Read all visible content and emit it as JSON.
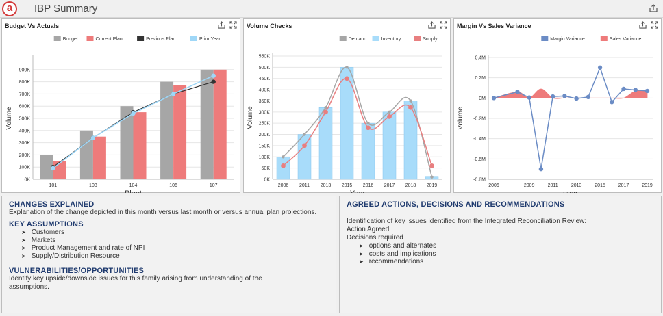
{
  "app": {
    "logo_letter": "a",
    "title": "IBP Summary"
  },
  "icons": {
    "export": "export-icon",
    "expand": "expand-icon"
  },
  "colors": {
    "budget": "#a6a6a6",
    "current_plan": "#ee7b7b",
    "previous_plan": "#333333",
    "prior_year": "#9fd7f7",
    "demand": "#a6a6a6",
    "inventory": "#a8dcfa",
    "supply": "#e87f80",
    "margin": "#6b8cc5",
    "sales_var": "#ee7b7b",
    "heading": "#1f3a6e"
  },
  "panels": {
    "budget": {
      "title": "Budget Vs Actuals"
    },
    "volume": {
      "title": "Volume Checks"
    },
    "margin": {
      "title": "Margin Vs Sales Variance"
    }
  },
  "chart_data": [
    {
      "type": "bar",
      "title": "Budget Vs Actuals",
      "xlabel": "Plant",
      "ylabel": "Volume",
      "categories": [
        "101",
        "103",
        "104",
        "106",
        "107"
      ],
      "ylim": [
        0,
        1000000
      ],
      "yticks": [
        "0K",
        "100K",
        "200K",
        "300K",
        "400K",
        "500K",
        "600K",
        "700K",
        "800K",
        "900K"
      ],
      "legend_position": "top-right",
      "series": [
        {
          "name": "Budget",
          "kind": "bar",
          "values": [
            200000,
            400000,
            600000,
            800000,
            900000
          ]
        },
        {
          "name": "Current Plan",
          "kind": "bar",
          "values": [
            150000,
            350000,
            550000,
            770000,
            900000
          ]
        },
        {
          "name": "Previous Plan",
          "kind": "line",
          "values": [
            100000,
            340000,
            550000,
            700000,
            800000
          ]
        },
        {
          "name": "Prior Year",
          "kind": "line",
          "values": [
            90000,
            340000,
            540000,
            700000,
            850000
          ]
        }
      ]
    },
    {
      "type": "bar",
      "title": "Volume Checks",
      "xlabel": "Year",
      "ylabel": "Volume",
      "categories": [
        "2006",
        "2011",
        "2013",
        "2015",
        "2016",
        "2017",
        "2018",
        "2019"
      ],
      "ylim": [
        0,
        550000
      ],
      "yticks": [
        "0K",
        "50K",
        "100K",
        "150K",
        "200K",
        "250K",
        "300K",
        "350K",
        "400K",
        "450K",
        "500K",
        "550K"
      ],
      "legend_position": "top-right",
      "series": [
        {
          "name": "Demand",
          "kind": "line",
          "values": [
            100000,
            200000,
            320000,
            500000,
            250000,
            300000,
            350000,
            10000
          ]
        },
        {
          "name": "Inventory",
          "kind": "bar",
          "values": [
            100000,
            200000,
            320000,
            500000,
            250000,
            300000,
            350000,
            10000
          ]
        },
        {
          "name": "Supply",
          "kind": "line",
          "values": [
            60000,
            150000,
            300000,
            450000,
            230000,
            280000,
            320000,
            60000
          ]
        }
      ]
    },
    {
      "type": "area",
      "title": "Margin Vs Sales Variance",
      "xlabel": "year",
      "ylabel": "Volume",
      "x": [
        2006,
        2008,
        2009,
        2010,
        2011,
        2012,
        2013,
        2014,
        2015,
        2016,
        2017,
        2018,
        2019
      ],
      "xticks": [
        "2006",
        "2009",
        "2011",
        "2013",
        "2015",
        "2017",
        "2019"
      ],
      "ylim": [
        -800000,
        400000
      ],
      "yticks": [
        "-0.8M",
        "-0.6M",
        "-0.4M",
        "-0.2M",
        "0M",
        "0.2M",
        "0.4M"
      ],
      "legend_position": "top-right",
      "series": [
        {
          "name": "Margin Variance",
          "kind": "line",
          "values": [
            0,
            60000,
            5000,
            -700000,
            15000,
            20000,
            -5000,
            10000,
            300000,
            -40000,
            90000,
            80000,
            70000
          ]
        },
        {
          "name": "Sales Variance",
          "kind": "area",
          "values": [
            0,
            60000,
            0,
            90000,
            0,
            0,
            0,
            0,
            0,
            0,
            0,
            70000,
            70000
          ]
        }
      ]
    }
  ],
  "sections": {
    "changes": {
      "heading": "CHANGES EXPLAINED",
      "body": "Explanation of the change depicted in this month versus last month or versus annual plan projections."
    },
    "assumptions": {
      "heading": "KEY ASSUMPTIONS",
      "items": [
        "Customers",
        "Markets",
        "Product Management and rate of NPI",
        "Supply/Distribution Resource"
      ]
    },
    "vulnerabilities": {
      "heading": "VULNERABILITIES/OPPORTUNITIES",
      "body": "Identify key upside/downside issues for this family arising from understanding of the assumptions."
    },
    "actions": {
      "heading": "AGREED ACTIONS, DECISIONS AND RECOMMENDATIONS",
      "intro": "Identification of key issues identified from the Integrated Reconciliation Review:",
      "line1": "Action Agreed",
      "line2": "Decisions required",
      "items": [
        "options and alternates",
        "costs and implications",
        "recommendations"
      ]
    }
  }
}
